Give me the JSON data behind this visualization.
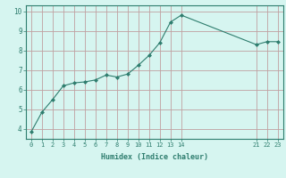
{
  "x": [
    0,
    1,
    2,
    3,
    4,
    5,
    6,
    7,
    8,
    9,
    10,
    11,
    12,
    13,
    14,
    21,
    22,
    23
  ],
  "y": [
    3.85,
    4.85,
    5.5,
    6.2,
    6.35,
    6.4,
    6.5,
    6.75,
    6.65,
    6.8,
    7.25,
    7.75,
    8.4,
    9.45,
    9.8,
    8.3,
    8.45,
    8.45
  ],
  "xlabel": "Humidex (Indice chaleur)",
  "xticks": [
    0,
    1,
    2,
    3,
    4,
    5,
    6,
    7,
    8,
    9,
    10,
    11,
    12,
    13,
    14,
    21,
    22,
    23
  ],
  "yticks": [
    4,
    5,
    6,
    7,
    8,
    9,
    10
  ],
  "ylim": [
    3.5,
    10.3
  ],
  "xlim": [
    -0.5,
    23.5
  ],
  "line_color": "#2e7d6e",
  "marker_color": "#2e7d6e",
  "bg_color": "#d6f5f0",
  "grid_color": "#c0a0a0",
  "axis_color": "#2e7d6e",
  "tick_color": "#2e7d6e",
  "label_color": "#2e7d6e"
}
